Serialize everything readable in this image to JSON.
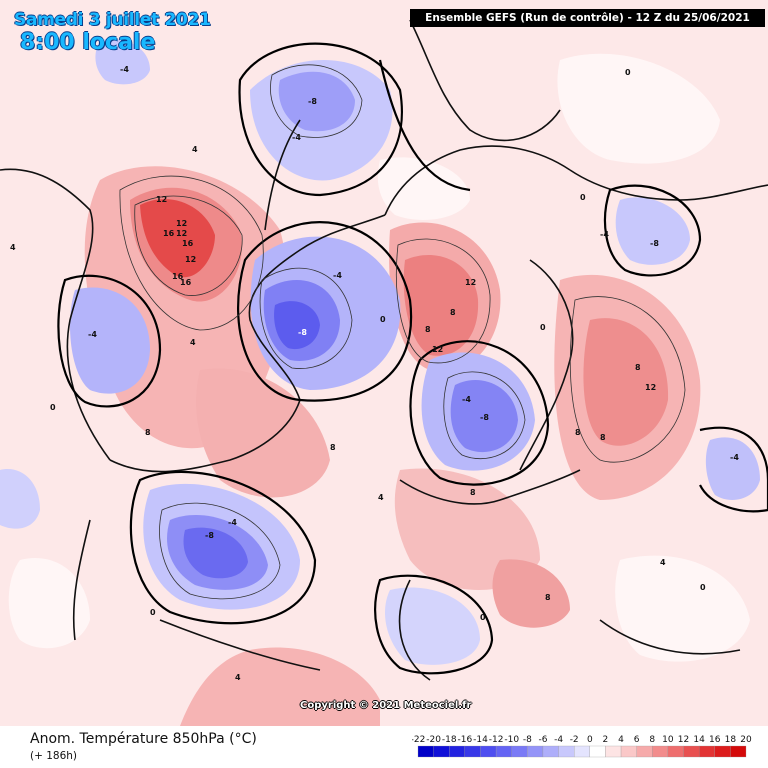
{
  "header": {
    "date": "Samedi 3 juillet 2021",
    "local_time": "8:00 locale",
    "model_info": "Ensemble GEFS  (Run de contrôle)  -  12 Z du 25/06/2021"
  },
  "footer": {
    "variable": "Anom. Température 850hPa (°C)",
    "lead_time": "(+ 186h)",
    "copyright": "Copyright © 2021 Meteociel.fr"
  },
  "legend": {
    "labels": [
      "-22",
      "-20",
      "-18",
      "-16",
      "-14",
      "-12",
      "-10",
      "-8",
      "-6",
      "-4",
      "-2",
      "0",
      "2",
      "4",
      "6",
      "8",
      "10",
      "12",
      "14",
      "16",
      "18",
      "20"
    ],
    "colors": [
      "#0000c8",
      "#1010d8",
      "#2222e0",
      "#3838e8",
      "#4e4ef0",
      "#6464f4",
      "#7a7af6",
      "#9494f8",
      "#aeaefa",
      "#c8c8fc",
      "#e4e4fe",
      "#ffffff",
      "#fde4e4",
      "#fac8c8",
      "#f6aaaa",
      "#f28c8c",
      "#ee6e6e",
      "#e85050",
      "#e23434",
      "#dc1c1c",
      "#d40a0a"
    ]
  },
  "contour_labels": {
    "pos12": "12",
    "pos16": "16",
    "pos8": "8",
    "pos4": "4",
    "zero": "0",
    "neg4": "-4",
    "neg8": "-8"
  }
}
